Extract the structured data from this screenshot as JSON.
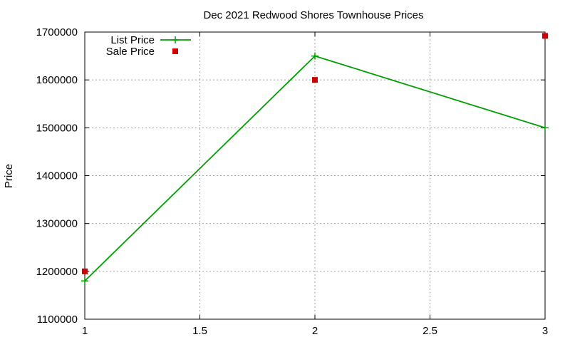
{
  "chart_data": {
    "type": "line",
    "title": "Dec 2021 Redwood Shores Townhouse Prices",
    "xlabel": "",
    "ylabel": "Price",
    "xlim": [
      1,
      3
    ],
    "ylim": [
      1100000,
      1700000
    ],
    "x_ticks": [
      "1",
      "1.5",
      "2",
      "2.5",
      "3"
    ],
    "y_ticks": [
      "1100000",
      "1200000",
      "1300000",
      "1400000",
      "1500000",
      "1600000",
      "1700000"
    ],
    "grid": true,
    "legend_position": "top-left",
    "series": [
      {
        "name": "List Price",
        "style": "line-with-plus-markers",
        "color": "#009e00",
        "points": [
          {
            "x": 1,
            "y": 1180000
          },
          {
            "x": 2,
            "y": 1650000
          },
          {
            "x": 3,
            "y": 1500000
          }
        ]
      },
      {
        "name": "Sale Price",
        "style": "square-markers",
        "color": "#cc0000",
        "points": [
          {
            "x": 1,
            "y": 1200000
          },
          {
            "x": 2,
            "y": 1600000
          },
          {
            "x": 3,
            "y": 1692000
          }
        ]
      }
    ]
  }
}
